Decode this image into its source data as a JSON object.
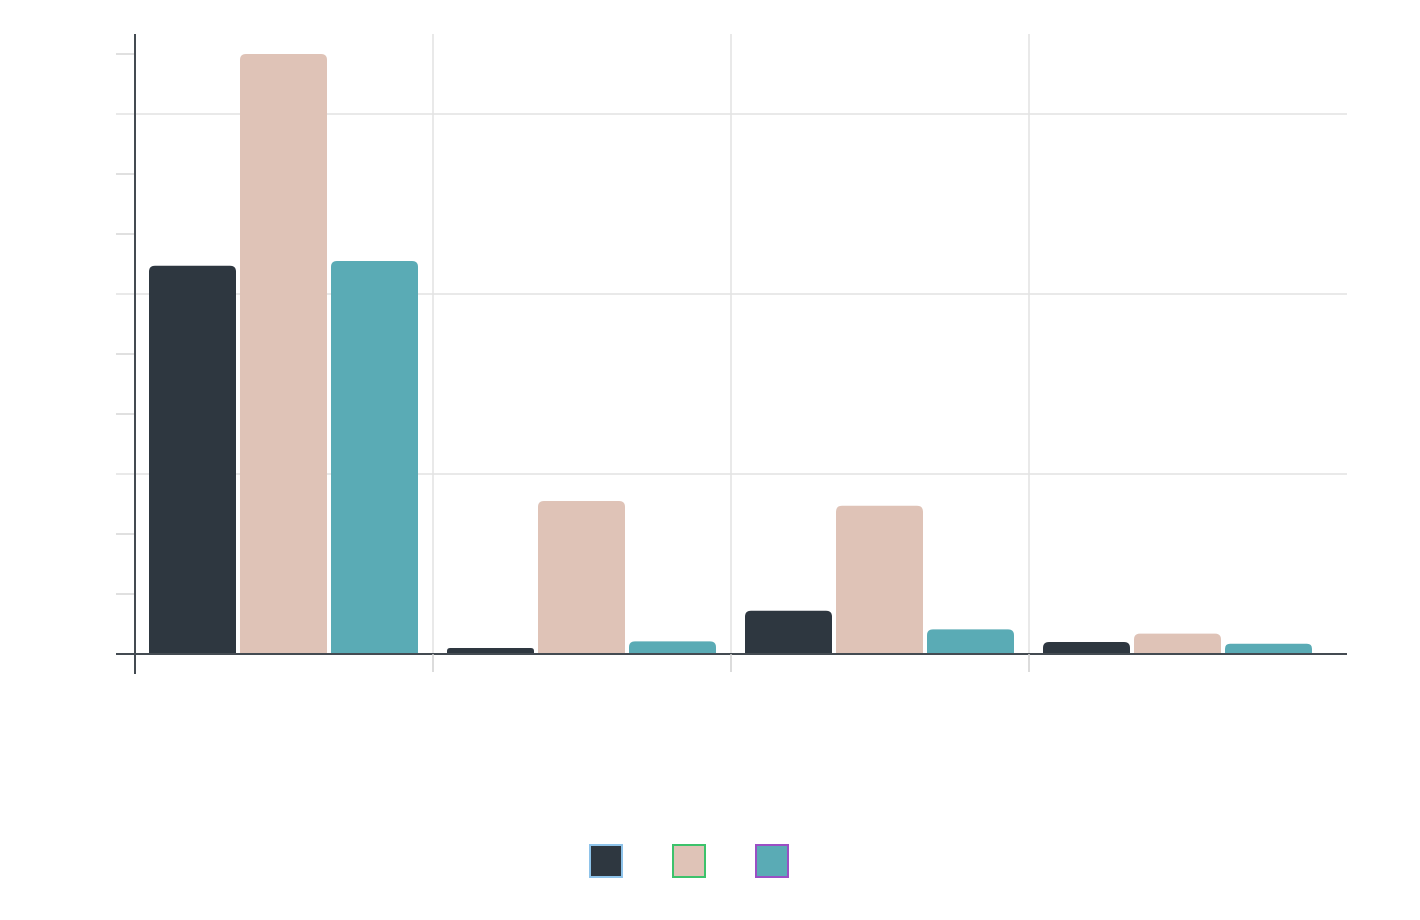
{
  "chart_data": {
    "type": "bar",
    "title": "",
    "xlabel": "",
    "ylabel": "",
    "categories": [
      "",
      "",
      "",
      ""
    ],
    "ylim": [
      0,
      10
    ],
    "grid": true,
    "legend": "bottom-center",
    "series": [
      {
        "name": "",
        "color": "#2e3740",
        "outline": "#8ec3ea",
        "values": [
          6.47,
          0.1,
          0.72,
          0.2
        ]
      },
      {
        "name": "",
        "color": "#dfc3b7",
        "outline": "#3cc26b",
        "values": [
          10.0,
          2.55,
          2.47,
          0.34
        ]
      },
      {
        "name": "",
        "color": "#5aabb5",
        "outline": "#9b4fc4",
        "values": [
          6.55,
          0.21,
          0.41,
          0.17
        ]
      }
    ],
    "data_labels": [
      "",
      "",
      "",
      ""
    ]
  }
}
